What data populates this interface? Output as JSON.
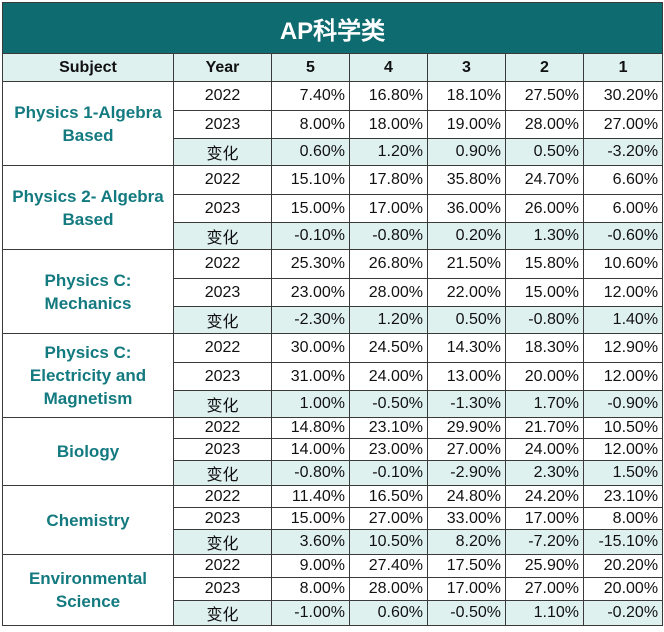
{
  "title": "AP科学类",
  "headers": [
    "Subject",
    "Year",
    "5",
    "4",
    "3",
    "2",
    "1"
  ],
  "subjects": [
    {
      "name": "Physics 1-Algebra Based",
      "rows": [
        {
          "year": "2022",
          "values": [
            "7.40%",
            "16.80%",
            "18.10%",
            "27.50%",
            "30.20%"
          ]
        },
        {
          "year": "2023",
          "values": [
            "8.00%",
            "18.00%",
            "19.00%",
            "28.00%",
            "27.00%"
          ]
        },
        {
          "year": "变化",
          "values": [
            "0.60%",
            "1.20%",
            "0.90%",
            "0.50%",
            "-3.20%"
          ]
        }
      ]
    },
    {
      "name": "Physics 2- Algebra Based",
      "rows": [
        {
          "year": "2022",
          "values": [
            "15.10%",
            "17.80%",
            "35.80%",
            "24.70%",
            "6.60%"
          ]
        },
        {
          "year": "2023",
          "values": [
            "15.00%",
            "17.00%",
            "36.00%",
            "26.00%",
            "6.00%"
          ]
        },
        {
          "year": "变化",
          "values": [
            "-0.10%",
            "-0.80%",
            "0.20%",
            "1.30%",
            "-0.60%"
          ]
        }
      ]
    },
    {
      "name": "Physics C: Mechanics",
      "rows": [
        {
          "year": "2022",
          "values": [
            "25.30%",
            "26.80%",
            "21.50%",
            "15.80%",
            "10.60%"
          ]
        },
        {
          "year": "2023",
          "values": [
            "23.00%",
            "28.00%",
            "22.00%",
            "15.00%",
            "12.00%"
          ]
        },
        {
          "year": "变化",
          "values": [
            "-2.30%",
            "1.20%",
            "0.50%",
            "-0.80%",
            "1.40%"
          ]
        }
      ]
    },
    {
      "name": "Physics C: Electricity and Magnetism",
      "rows": [
        {
          "year": "2022",
          "values": [
            "30.00%",
            "24.50%",
            "14.30%",
            "18.30%",
            "12.90%"
          ]
        },
        {
          "year": "2023",
          "values": [
            "31.00%",
            "24.00%",
            "13.00%",
            "20.00%",
            "12.00%"
          ]
        },
        {
          "year": "变化",
          "values": [
            "1.00%",
            "-0.50%",
            "-1.30%",
            "1.70%",
            "-0.90%"
          ]
        }
      ]
    },
    {
      "name": "Biology",
      "rows": [
        {
          "year": "2022",
          "values": [
            "14.80%",
            "23.10%",
            "29.90%",
            "21.70%",
            "10.50%"
          ]
        },
        {
          "year": "2023",
          "values": [
            "14.00%",
            "23.00%",
            "27.00%",
            "24.00%",
            "12.00%"
          ]
        },
        {
          "year": "变化",
          "values": [
            "-0.80%",
            "-0.10%",
            "-2.90%",
            "2.30%",
            "1.50%"
          ]
        }
      ]
    },
    {
      "name": "Chemistry",
      "rows": [
        {
          "year": "2022",
          "values": [
            "11.40%",
            "16.50%",
            "24.80%",
            "24.20%",
            "23.10%"
          ]
        },
        {
          "year": "2023",
          "values": [
            "15.00%",
            "27.00%",
            "33.00%",
            "17.00%",
            "8.00%"
          ]
        },
        {
          "year": "变化",
          "values": [
            "3.60%",
            "10.50%",
            "8.20%",
            "-7.20%",
            "-15.10%"
          ]
        }
      ]
    },
    {
      "name": "Environmental Science",
      "rows": [
        {
          "year": "2022",
          "values": [
            "9.00%",
            "27.40%",
            "17.50%",
            "25.90%",
            "20.20%"
          ]
        },
        {
          "year": "2023",
          "values": [
            "8.00%",
            "28.00%",
            "17.00%",
            "27.00%",
            "20.00%"
          ]
        },
        {
          "year": "变化",
          "values": [
            "-1.00%",
            "0.60%",
            "-0.50%",
            "1.10%",
            "-0.20%"
          ]
        }
      ]
    }
  ],
  "colors": {
    "title_bg": "#0e6b70",
    "subject_text": "#137a80",
    "shade": "#dff1ef"
  }
}
